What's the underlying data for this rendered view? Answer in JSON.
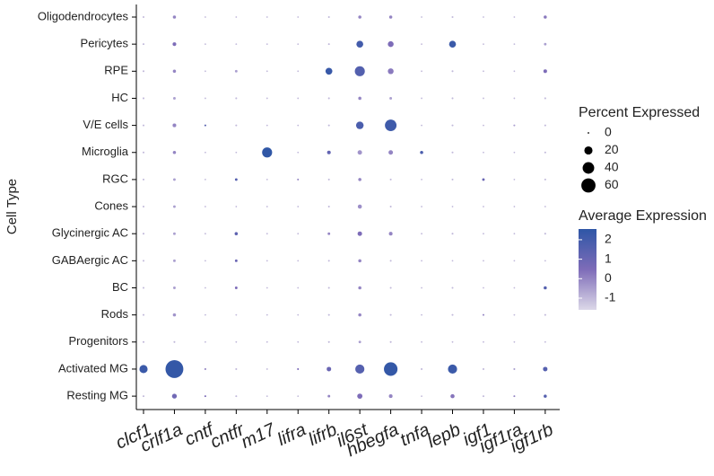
{
  "chart_data": {
    "type": "dotplot",
    "x_categories": [
      "clcf1",
      "crlf1a",
      "cntf",
      "cntfr",
      "m17",
      "lifra",
      "lifrb",
      "il6st",
      "hbegfa",
      "tnfa",
      "lepb",
      "igf1",
      "igf1ra",
      "igf1rb"
    ],
    "y_categories": [
      "Oligodendrocytes",
      "Pericytes",
      "RPE",
      "HC",
      "V/E cells",
      "Microglia",
      "RGC",
      "Cones",
      "Glycinergic AC",
      "GABAergic AC",
      "BC",
      "Rods",
      "Progenitors",
      "Activated MG",
      "Resting MG"
    ],
    "y_label": "Cell Type",
    "percent_expressed": [
      [
        1,
        3,
        0.5,
        0.5,
        0.5,
        0.5,
        1,
        3,
        3,
        0.5,
        1,
        0.5,
        0.5,
        3
      ],
      [
        1,
        4,
        0.5,
        0.5,
        0.5,
        0.5,
        1,
        14,
        10,
        0.5,
        14,
        0.5,
        0.5,
        2
      ],
      [
        1,
        3,
        0.5,
        2,
        0.5,
        0.5,
        14,
        30,
        10,
        0.5,
        1,
        0.5,
        0.5,
        4
      ],
      [
        1,
        2,
        0.5,
        1,
        0.5,
        0.5,
        1,
        3,
        2,
        0.5,
        1,
        0.5,
        0.5,
        1
      ],
      [
        1,
        4,
        1,
        1,
        0.5,
        0.5,
        1,
        17,
        40,
        0.5,
        1,
        0.5,
        1,
        1
      ],
      [
        1,
        3,
        0.5,
        0.5,
        30,
        0.5,
        4,
        6,
        6,
        3,
        1,
        0.5,
        0.5,
        1
      ],
      [
        1,
        2,
        0.5,
        2,
        0.5,
        1,
        1,
        3,
        1,
        0.5,
        1,
        2,
        0.5,
        1
      ],
      [
        1,
        2,
        0.5,
        0.5,
        0.5,
        0.5,
        1,
        5,
        1,
        0.5,
        0.5,
        0.5,
        0.5,
        0.5
      ],
      [
        1,
        2,
        0.5,
        3,
        0.5,
        0.5,
        2,
        6,
        4,
        0.5,
        1,
        0.5,
        0.5,
        1
      ],
      [
        1,
        2,
        0.5,
        2,
        0.5,
        0.5,
        1,
        3,
        1,
        0.5,
        0.5,
        0.5,
        0.5,
        0.5
      ],
      [
        1,
        2,
        0.5,
        2,
        0.5,
        0.5,
        1,
        3,
        1,
        0.5,
        1,
        0.5,
        0.5,
        3
      ],
      [
        1,
        3,
        0.5,
        0.5,
        0.5,
        0.5,
        1,
        3,
        1,
        0.5,
        1,
        1,
        0.5,
        1
      ],
      [
        1,
        1,
        0.5,
        0.5,
        0.5,
        0.5,
        1,
        2,
        1,
        0.5,
        0.5,
        0.5,
        0.5,
        0.5
      ],
      [
        20,
        95,
        1,
        1,
        0.5,
        1,
        6,
        25,
        55,
        1,
        25,
        1,
        1,
        6
      ],
      [
        1,
        7,
        1,
        1,
        0.5,
        0.5,
        2,
        8,
        4,
        0.5,
        5,
        1,
        1,
        3
      ]
    ],
    "average_expression": [
      [
        -1,
        0,
        -1,
        -1,
        -1,
        -1,
        -1,
        0,
        0,
        -1,
        -1,
        -1,
        -1,
        0.2
      ],
      [
        -1,
        0.5,
        -1,
        -1,
        -1,
        -1,
        -1,
        2,
        0.5,
        -1,
        2.2,
        -1,
        -1,
        -0.5
      ],
      [
        -1,
        0,
        -1,
        -0.5,
        -1,
        -1,
        2.3,
        1.6,
        0.2,
        -1,
        -1,
        -1,
        -1,
        0.5
      ],
      [
        -1,
        -0.5,
        -1,
        -1,
        -1,
        -1,
        -1,
        0,
        -0.5,
        -1,
        -1,
        -1,
        -1,
        -1
      ],
      [
        -1,
        0,
        1.5,
        -1,
        -1,
        -1,
        -1,
        1.8,
        2.1,
        -1,
        -1,
        -1,
        -0.5,
        -1
      ],
      [
        -1,
        0,
        -1,
        -1,
        2.5,
        -1,
        1.2,
        -0.3,
        0,
        1.8,
        -1,
        -1,
        -1,
        -1
      ],
      [
        -1,
        -0.5,
        -1,
        1.5,
        -1,
        0,
        -1,
        0,
        -1,
        -1,
        -1,
        1,
        -1,
        -1
      ],
      [
        -1,
        -0.5,
        -1,
        -1,
        -1,
        -1,
        -1,
        -0.2,
        -1,
        -1,
        -1,
        -1,
        -1,
        -1
      ],
      [
        -1,
        -0.5,
        -1,
        1.3,
        -1,
        -1,
        0,
        0.5,
        0,
        -1,
        -1,
        -1,
        -1,
        -1
      ],
      [
        -1,
        -0.5,
        -1,
        1,
        -1,
        -1,
        -1,
        0,
        -1,
        -1,
        -1,
        -1,
        -1,
        -1
      ],
      [
        -1,
        -0.5,
        -1,
        0.5,
        -1,
        -1,
        -1,
        0,
        -1,
        -1,
        -1,
        -1,
        -1,
        1.5
      ],
      [
        -1,
        -0.3,
        -1,
        -1,
        -1,
        -1,
        -1,
        0,
        -1,
        -1,
        -1,
        0,
        -1,
        -1
      ],
      [
        -1,
        -1,
        -1,
        -1,
        -1,
        -1,
        -1,
        -0.5,
        -1,
        -1,
        -1,
        -1,
        -1,
        -1
      ],
      [
        2.2,
        2.4,
        0,
        -1,
        -1,
        0.5,
        1,
        1.5,
        2.4,
        -1,
        2.2,
        -1,
        -0.5,
        1.5
      ],
      [
        -1,
        0.8,
        0.5,
        -1,
        -1,
        -1,
        0,
        0.5,
        0,
        -1,
        0.3,
        -1,
        0,
        1.5
      ]
    ],
    "size_legend": {
      "title": "Percent Expressed",
      "values": [
        0,
        20,
        40,
        60
      ]
    },
    "color_legend": {
      "title": "Average Expression",
      "ticks": [
        2,
        1,
        0,
        -1
      ],
      "lim": [
        -1.6,
        2.55
      ],
      "colors": [
        "#dcd8e8",
        "#7e6cb8",
        "#2e56a6"
      ]
    }
  }
}
